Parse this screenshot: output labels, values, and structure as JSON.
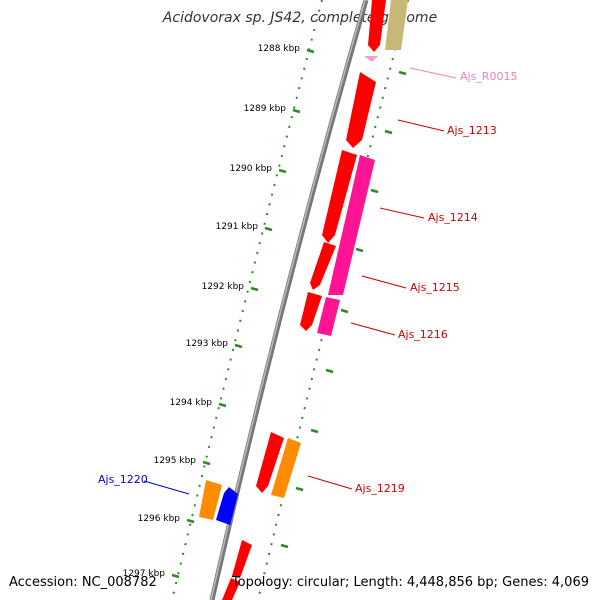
{
  "title": "Acidovorax sp. JS42, complete genome",
  "accession": "Accession: NC_008782",
  "summary": "Topology: circular; Length: 4,448,856 bp; Genes: 4,069",
  "ruler": [
    "1288 kbp",
    "1289 kbp",
    "1290 kbp",
    "1291 kbp",
    "1292 kbp",
    "1293 kbp",
    "1294 kbp",
    "1295 kbp",
    "1296 kbp",
    "1297 kbp"
  ],
  "gene_labels": [
    {
      "text": "Ajs_R0015",
      "color": "#f080b8"
    },
    {
      "text": "Ajs_1213",
      "color": "#cc0000"
    },
    {
      "text": "Ajs_1214",
      "color": "#cc0000"
    },
    {
      "text": "Ajs_1215",
      "color": "#cc0000"
    },
    {
      "text": "Ajs_1216",
      "color": "#cc0000"
    },
    {
      "text": "Ajs_1219",
      "color": "#cc0000"
    },
    {
      "text": "Ajs_1220",
      "color": "#0000cc"
    }
  ],
  "colors": {
    "red": "#ff0000",
    "magenta": "#ff1493",
    "orange": "#ff8c00",
    "blue": "#0000ff",
    "olive": "#c8b878",
    "pink": "#f0a0c8",
    "tick_green": "#2e8b22",
    "backbone": "#888888"
  }
}
